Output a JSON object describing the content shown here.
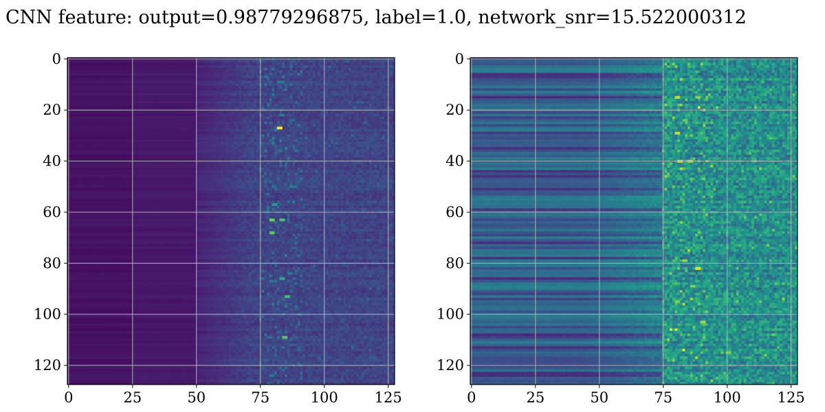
{
  "figure": {
    "title": "CNN feature: output=0.98779296875, label=1.0, network_snr=15.522000312"
  },
  "chart_data": [
    {
      "type": "heatmap",
      "name": "left-panel",
      "description_of_content": "128x128 feature map, viridis colormap; low uniform values for columns 0-50, noisy mid values for 50-128, bright sparse spots around columns 75-90",
      "x_range": [
        -0.5,
        127.5
      ],
      "y_range": [
        -0.5,
        127.5
      ],
      "y_inverted": true,
      "xticks": [
        0,
        25,
        50,
        75,
        100,
        125
      ],
      "yticks": [
        0,
        20,
        40,
        60,
        80,
        100,
        120
      ],
      "grid": true,
      "colormap": "viridis",
      "hot_spots": [
        {
          "x": 82,
          "y": 27,
          "v": 1.0
        },
        {
          "x": 79,
          "y": 63,
          "v": 0.78
        },
        {
          "x": 83,
          "y": 63,
          "v": 0.72
        },
        {
          "x": 79,
          "y": 68,
          "v": 0.75
        },
        {
          "x": 85,
          "y": 93,
          "v": 0.7
        },
        {
          "x": 84,
          "y": 109,
          "v": 0.74
        },
        {
          "x": 83,
          "y": 86,
          "v": 0.6
        },
        {
          "x": 80,
          "y": 57,
          "v": 0.55
        }
      ]
    },
    {
      "type": "heatmap",
      "name": "right-panel",
      "description_of_content": "128x128 normalized feature map, viridis colormap; horizontal banding for columns 0-75, brighter noisy region for columns 75-128 with bright streaks",
      "x_range": [
        -0.5,
        127.5
      ],
      "y_range": [
        -0.5,
        127.5
      ],
      "y_inverted": true,
      "xticks": [
        0,
        25,
        50,
        75,
        100,
        125
      ],
      "yticks": [
        0,
        20,
        40,
        60,
        80,
        100,
        120
      ],
      "grid": true,
      "colormap": "viridis",
      "hot_spots": [
        {
          "x": 80,
          "y": 15,
          "v": 0.9
        },
        {
          "x": 88,
          "y": 15,
          "v": 0.8
        },
        {
          "x": 80,
          "y": 29,
          "v": 0.9
        },
        {
          "x": 81,
          "y": 40,
          "v": 0.95
        },
        {
          "x": 85,
          "y": 40,
          "v": 0.9
        },
        {
          "x": 88,
          "y": 82,
          "v": 0.95
        },
        {
          "x": 90,
          "y": 103,
          "v": 0.85
        },
        {
          "x": 100,
          "y": 115,
          "v": 0.8
        },
        {
          "x": 80,
          "y": 95,
          "v": 0.8
        },
        {
          "x": 83,
          "y": 24,
          "v": 0.75
        }
      ]
    }
  ]
}
